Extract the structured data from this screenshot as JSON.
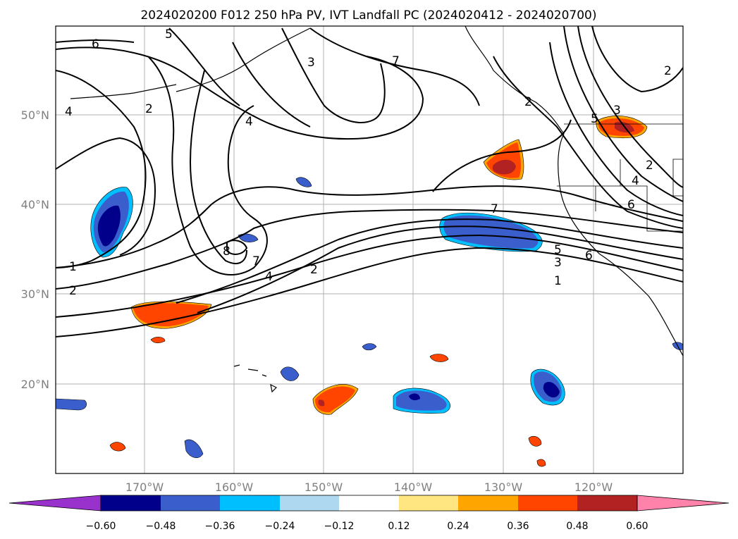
{
  "title": "2024020200 F012 250 hPa PV, IVT Landfall PC (2024020412 - 2024020700)",
  "lon_labels": [
    "170°W",
    "160°W",
    "150°W",
    "140°W",
    "130°W",
    "120°W"
  ],
  "lat_labels": [
    "50°N",
    "40°N",
    "30°N",
    "20°N"
  ],
  "contour_labels": [
    "6",
    "5",
    "3",
    "7",
    "4",
    "2",
    "4",
    "2",
    "1",
    "2",
    "8",
    "7",
    "4",
    "2",
    "7",
    "5",
    "3",
    "1",
    "6",
    "5",
    "3",
    "2",
    "4",
    "6",
    "2"
  ],
  "colorbar": {
    "ticks": [
      "−0.60",
      "−0.48",
      "−0.36",
      "−0.24",
      "−0.12",
      "0.12",
      "0.24",
      "0.36",
      "0.48",
      "0.60"
    ],
    "colors": [
      "#9932cc",
      "#00008b",
      "#3a5fcd",
      "#00bfff",
      "#add8f0",
      "#ffffff",
      "#ffe680",
      "#ffa500",
      "#ff4500",
      "#b22222",
      "#ff82ab"
    ]
  },
  "anomaly_colors": {
    "neg_strong": "#00008b",
    "neg_mid": "#3a5fcd",
    "neg_light": "#00bfff",
    "pos_mid": "#ff4500",
    "pos_strong": "#b22222",
    "pos_light": "#ffa500"
  }
}
